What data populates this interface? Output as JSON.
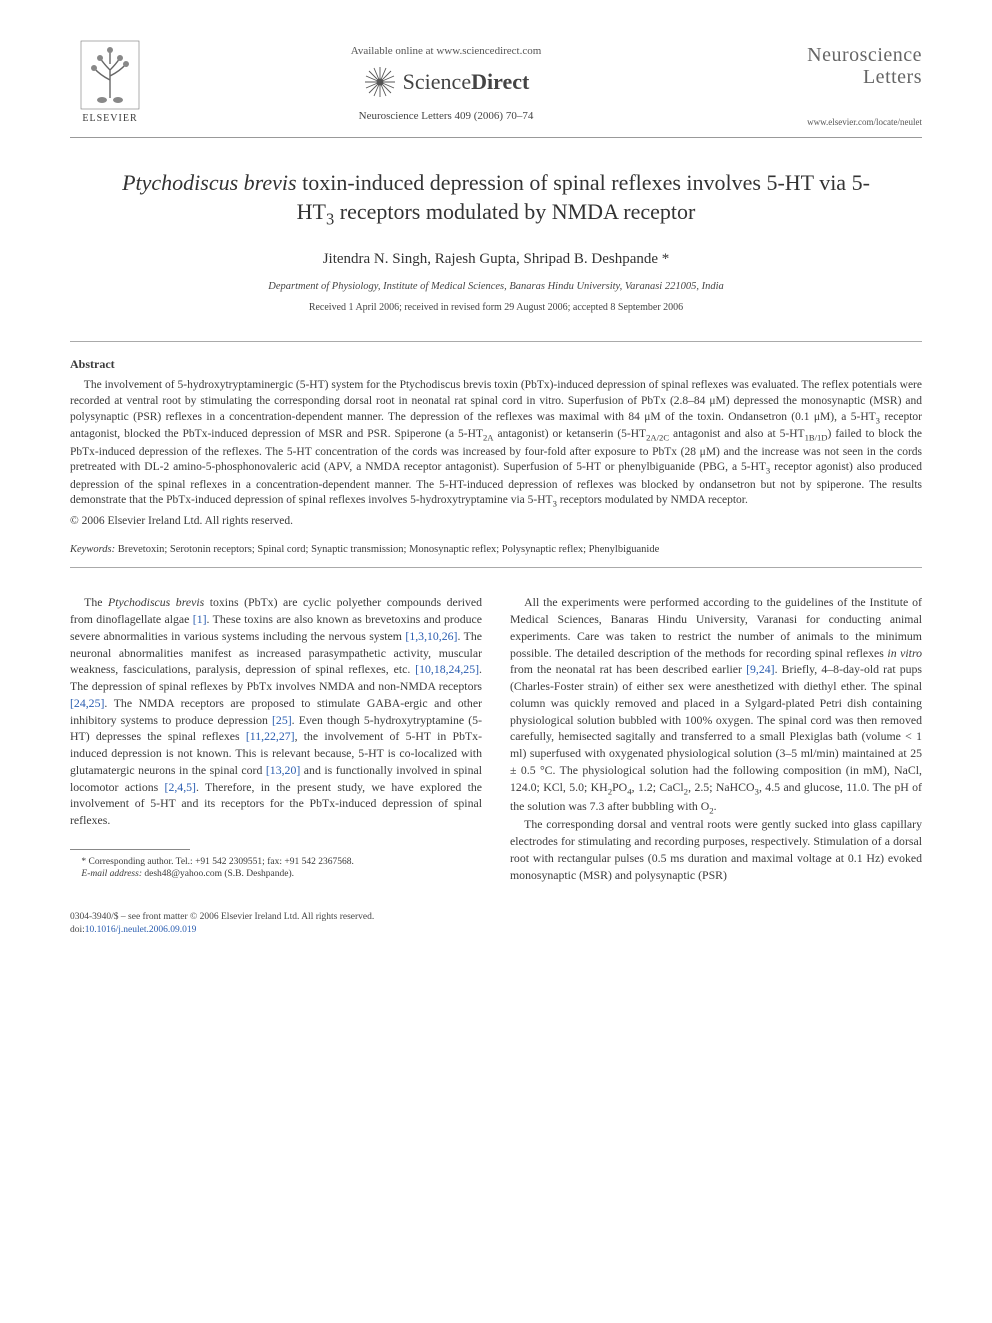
{
  "header": {
    "elsevier_label": "ELSEVIER",
    "available_line": "Available online at www.sciencedirect.com",
    "sciencedirect_sci": "Science",
    "sciencedirect_direct": "Direct",
    "citation": "Neuroscience Letters 409 (2006) 70–74",
    "journal_name_line1": "Neuroscience",
    "journal_name_line2": "Letters",
    "journal_url": "www.elsevier.com/locate/neulet"
  },
  "title_html": "<span class=\"italic\">Ptychodiscus brevis</span> toxin-induced depression of spinal reflexes involves 5-HT via 5-HT<sub>3</sub> receptors modulated by NMDA receptor",
  "authors": "Jitendra N. Singh, Rajesh Gupta, Shripad B. Deshpande *",
  "affiliation": "Department of Physiology, Institute of Medical Sciences, Banaras Hindu University, Varanasi 221005, India",
  "dates": "Received 1 April 2006; received in revised form 29 August 2006; accepted 8 September 2006",
  "abstract": {
    "heading": "Abstract",
    "body_html": "The involvement of 5-hydroxytryptaminergic (5-HT) system for the <span class=\"italic\">Ptychodiscus brevis</span> toxin (PbTx)-induced depression of spinal reflexes was evaluated. The reflex potentials were recorded at ventral root by stimulating the corresponding dorsal root in neonatal rat spinal cord <span class=\"italic\">in vitro</span>. Superfusion of PbTx (2.8–84 μM) depressed the monosynaptic (MSR) and polysynaptic (PSR) reflexes in a concentration-dependent manner. The depression of the reflexes was maximal with 84 μM of the toxin. Ondansetron (0.1 μM), a 5-HT<sub>3</sub> receptor antagonist, blocked the PbTx-induced depression of MSR and PSR. Spiperone (a 5-HT<sub>2A</sub> antagonist) or ketanserin (5-HT<sub>2A/2C</sub> antagonist and also at 5-HT<sub>1B/1D</sub>) failed to block the PbTx-induced depression of the reflexes. The 5-HT concentration of the cords was increased by four-fold after exposure to PbTx (28 μM) and the increase was not seen in the cords pretreated with DL-2 amino-5-phosphonovaleric acid (APV, a NMDA receptor antagonist). Superfusion of 5-HT or phenylbiguanide (PBG, a 5-HT<sub>3</sub> receptor agonist) also produced depression of the spinal reflexes in a concentration-dependent manner. The 5-HT-induced depression of reflexes was blocked by ondansetron but not by spiperone. The results demonstrate that the PbTx-induced depression of spinal reflexes involves 5-hydroxytryptamine via 5-HT<sub>3</sub> receptors modulated by NMDA receptor.",
    "copyright": "© 2006 Elsevier Ireland Ltd. All rights reserved."
  },
  "keywords": {
    "label": "Keywords:",
    "text": " Brevetoxin; Serotonin receptors; Spinal cord; Synaptic transmission; Monosynaptic reflex; Polysynaptic reflex; Phenylbiguanide"
  },
  "body": {
    "left": {
      "p1_html": "The <span class=\"italic\">Ptychodiscus brevis</span> toxins (PbTx) are cyclic polyether compounds derived from dinoflagellate algae <span class=\"ref\">[1]</span>. These toxins are also known as brevetoxins and produce severe abnormalities in various systems including the nervous system <span class=\"ref\">[1,3,10,26]</span>. The neuronal abnormalities manifest as increased parasympathetic activity, muscular weakness, fasciculations, paralysis, depression of spinal reflexes, etc. <span class=\"ref\">[10,18,24,25]</span>. The depression of spinal reflexes by PbTx involves NMDA and non-NMDA receptors <span class=\"ref\">[24,25]</span>. The NMDA receptors are proposed to stimulate GABA-ergic and other inhibitory systems to produce depression <span class=\"ref\">[25]</span>. Even though 5-hydroxytryptamine (5-HT) depresses the spinal reflexes <span class=\"ref\">[11,22,27]</span>, the involvement of 5-HT in PbTx-induced depression is not known. This is relevant because, 5-HT is co-localized with glutamatergic neurons in the spinal cord <span class=\"ref\">[13,20]</span> and is functionally involved in spinal locomotor actions <span class=\"ref\">[2,4,5]</span>. Therefore, in the present study, we have explored the involvement of 5-HT and its receptors for the PbTx-induced depression of spinal reflexes."
    },
    "right": {
      "p1_html": "All the experiments were performed according to the guidelines of the Institute of Medical Sciences, Banaras Hindu University, Varanasi for conducting animal experiments. Care was taken to restrict the number of animals to the minimum possible. The detailed description of the methods for recording spinal reflexes <span class=\"italic\">in vitro</span> from the neonatal rat has been described earlier <span class=\"ref\">[9,24]</span>. Briefly, 4–8-day-old rat pups (Charles-Foster strain) of either sex were anesthetized with diethyl ether. The spinal column was quickly removed and placed in a Sylgard-plated Petri dish containing physiological solution bubbled with 100% oxygen. The spinal cord was then removed carefully, hemisected sagitally and transferred to a small Plexiglas bath (volume &lt; 1 ml) superfused with oxygenated physiological solution (3–5 ml/min) maintained at 25 ± 0.5 °C. The physiological solution had the following composition (in mM), NaCl, 124.0; KCl, 5.0; KH<sub>2</sub>PO<sub>4</sub>, 1.2; CaCl<sub>2</sub>, 2.5; NaHCO<sub>3</sub>, 4.5 and glucose, 11.0. The pH of the solution was 7.3 after bubbling with O<sub>2</sub>.",
      "p2_html": "The corresponding dorsal and ventral roots were gently sucked into glass capillary electrodes for stimulating and recording purposes, respectively. Stimulation of a dorsal root with rectangular pulses (0.5 ms duration and maximal voltage at 0.1 Hz) evoked monosynaptic (MSR) and polysynaptic (PSR)"
    }
  },
  "footnote": {
    "corr": "* Corresponding author. Tel.: +91 542 2309551; fax: +91 542 2367568.",
    "email_label": "E-mail address:",
    "email": " desh48@yahoo.com (S.B. Deshpande)."
  },
  "footer": {
    "line1": "0304-3940/$ – see front matter © 2006 Elsevier Ireland Ltd. All rights reserved.",
    "doi_prefix": "doi:",
    "doi": "10.1016/j.neulet.2006.09.019"
  },
  "colors": {
    "text": "#3a3a3a",
    "link": "#2a5db0",
    "rule": "#aaaaaa",
    "background": "#ffffff"
  }
}
